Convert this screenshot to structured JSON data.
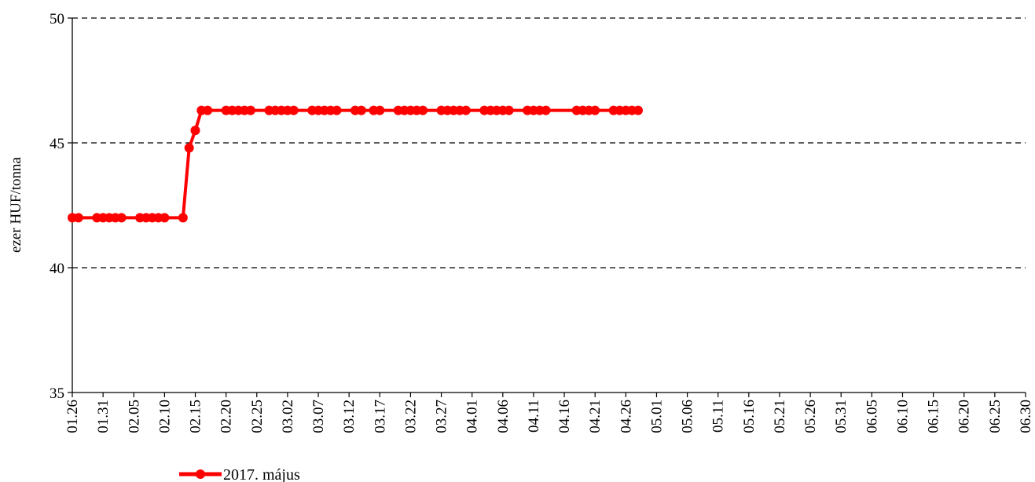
{
  "chart_data": {
    "type": "line",
    "title": "",
    "xlabel": "",
    "ylabel": "ezer HUF/tonna",
    "ylim": [
      35,
      50
    ],
    "yticks": [
      35,
      40,
      45,
      50
    ],
    "xtick_labels": [
      "01.26",
      "01.31",
      "02.05",
      "02.10",
      "02.15",
      "02.20",
      "02.25",
      "03.02",
      "03.07",
      "03.12",
      "03.17",
      "03.22",
      "03.27",
      "04.01",
      "04.06",
      "04.11",
      "04.16",
      "04.21",
      "04.26",
      "05.01",
      "05.06",
      "05.11",
      "05.16",
      "05.21",
      "05.26",
      "05.31",
      "06.05",
      "06.10",
      "06.15",
      "06.20",
      "06.25",
      "06.30"
    ],
    "grid": "horizontal dashed",
    "legend_position": "bottom",
    "series": [
      {
        "name": "2017. május",
        "color": "#ff0000",
        "marker": "circle",
        "x": [
          "01.26",
          "01.27",
          "01.30",
          "01.31",
          "02.01",
          "02.02",
          "02.03",
          "02.06",
          "02.07",
          "02.08",
          "02.09",
          "02.10",
          "02.13",
          "02.14",
          "02.15",
          "02.16",
          "02.17",
          "02.20",
          "02.21",
          "02.22",
          "02.23",
          "02.24",
          "02.27",
          "02.28",
          "03.01",
          "03.02",
          "03.03",
          "03.06",
          "03.07",
          "03.08",
          "03.09",
          "03.10",
          "03.13",
          "03.14",
          "03.16",
          "03.17",
          "03.20",
          "03.21",
          "03.22",
          "03.23",
          "03.24",
          "03.27",
          "03.28",
          "03.29",
          "03.30",
          "03.31",
          "04.03",
          "04.04",
          "04.05",
          "04.06",
          "04.07",
          "04.10",
          "04.11",
          "04.12",
          "04.13",
          "04.18",
          "04.19",
          "04.20",
          "04.21",
          "04.24",
          "04.25",
          "04.26",
          "04.27",
          "04.28"
        ],
        "values": [
          42,
          42,
          42,
          42,
          42,
          42,
          42,
          42,
          42,
          42,
          42,
          42,
          42,
          44.8,
          45.5,
          46.3,
          46.3,
          46.3,
          46.3,
          46.3,
          46.3,
          46.3,
          46.3,
          46.3,
          46.3,
          46.3,
          46.3,
          46.3,
          46.3,
          46.3,
          46.3,
          46.3,
          46.3,
          46.3,
          46.3,
          46.3,
          46.3,
          46.3,
          46.3,
          46.3,
          46.3,
          46.3,
          46.3,
          46.3,
          46.3,
          46.3,
          46.3,
          46.3,
          46.3,
          46.3,
          46.3,
          46.3,
          46.3,
          46.3,
          46.3,
          46.3,
          46.3,
          46.3,
          46.3,
          46.3,
          46.3,
          46.3,
          46.3,
          46.3
        ]
      }
    ]
  }
}
